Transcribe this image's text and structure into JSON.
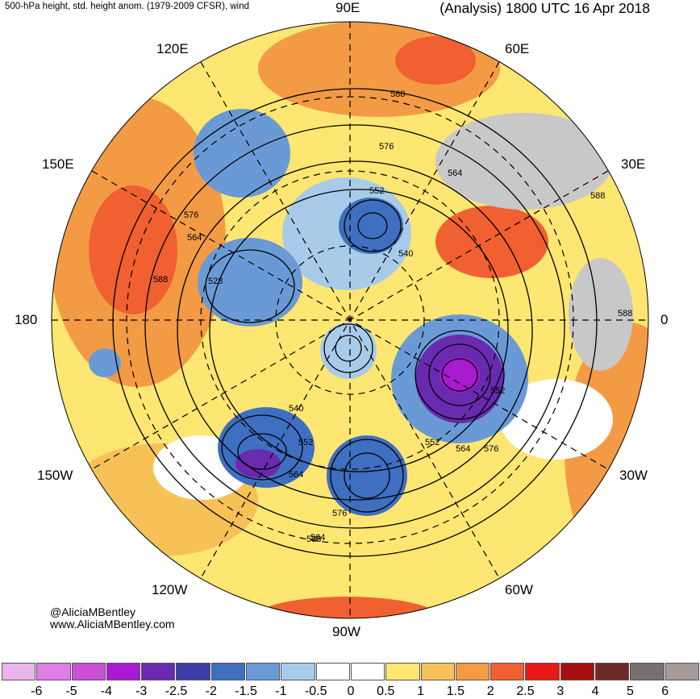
{
  "header": {
    "left_title": "500-hPa height, std. height anom. (1979-2009 CFSR), wind",
    "right_title": "(Analysis) 1800 UTC 16 Apr 2018"
  },
  "longitude_labels": {
    "e90": "90E",
    "e60": "60E",
    "e120": "120E",
    "e150": "150E",
    "e30": "30E",
    "lon180": "180",
    "lon0": "0",
    "w150": "150W",
    "w30": "30W",
    "w120": "120W",
    "w60": "60W",
    "w90": "90W"
  },
  "contour_labels": [
    "588",
    "576",
    "564",
    "552",
    "540",
    "528",
    "588",
    "576",
    "564",
    "588",
    "564",
    "552",
    "540",
    "552",
    "564",
    "576",
    "588",
    "552",
    "576",
    "564",
    "588"
  ],
  "credits": {
    "handle": "@AliciaMBentley",
    "website": "www.AliciaMBentley.com"
  },
  "colorbar": {
    "labels": [
      "-6",
      "-5",
      "-4",
      "-3",
      "-2.5",
      "-2",
      "-1.5",
      "-1",
      "-0.5",
      "0",
      "0.5",
      "1",
      "1.5",
      "2",
      "2.5",
      "3",
      "4",
      "5",
      "6"
    ],
    "colors": [
      "#e8b4ea",
      "#e07ee6",
      "#cc4fd8",
      "#a81ad0",
      "#6a2ab0",
      "#3b3ea8",
      "#3e6fc0",
      "#6a9ad6",
      "#a8cbea",
      "#ffffff",
      "#ffffff",
      "#fde672",
      "#f6c257",
      "#f39a45",
      "#f06030",
      "#e81818",
      "#a81010",
      "#6e2a26",
      "#7a6e6e",
      "#a89a98"
    ]
  }
}
